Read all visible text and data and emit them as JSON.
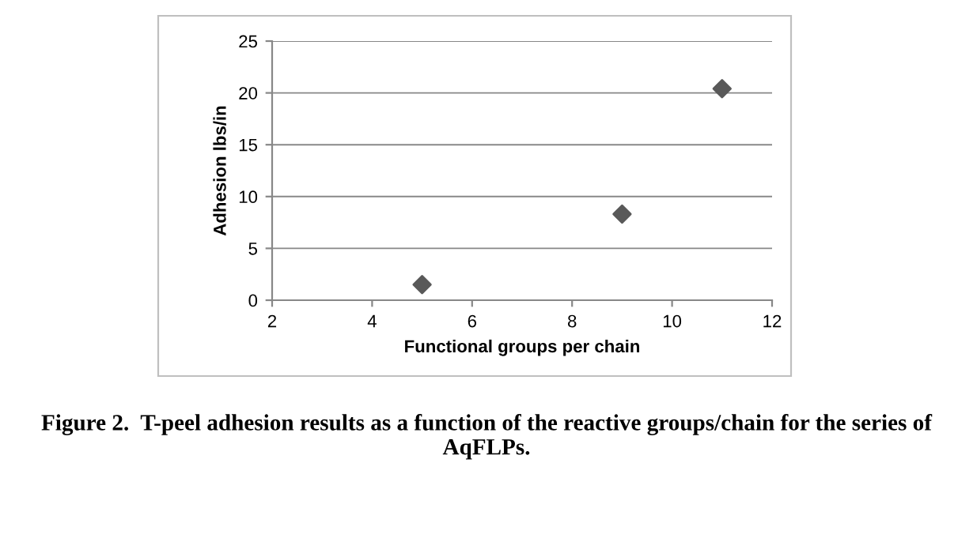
{
  "chart_data": {
    "type": "scatter",
    "xlabel": "Functional groups per chain",
    "ylabel": "Adhesion lbs/in",
    "x": [
      5,
      9,
      11
    ],
    "series": [
      {
        "color": "#595959",
        "values": [
          1.5,
          8.3,
          20.4
        ]
      }
    ],
    "xlim": [
      2,
      12
    ],
    "xticks": [
      2,
      4,
      6,
      8,
      10,
      12
    ],
    "ylim": [
      0,
      25
    ],
    "yticks": [
      0,
      5,
      10,
      15,
      20,
      25
    ],
    "grid": "y",
    "marker": "diamond",
    "legend": false,
    "annotations": [
      "Figure 2.  T-peel adhesion results as a function of the reactive groups/chain for the series of AqFLPs."
    ]
  }
}
